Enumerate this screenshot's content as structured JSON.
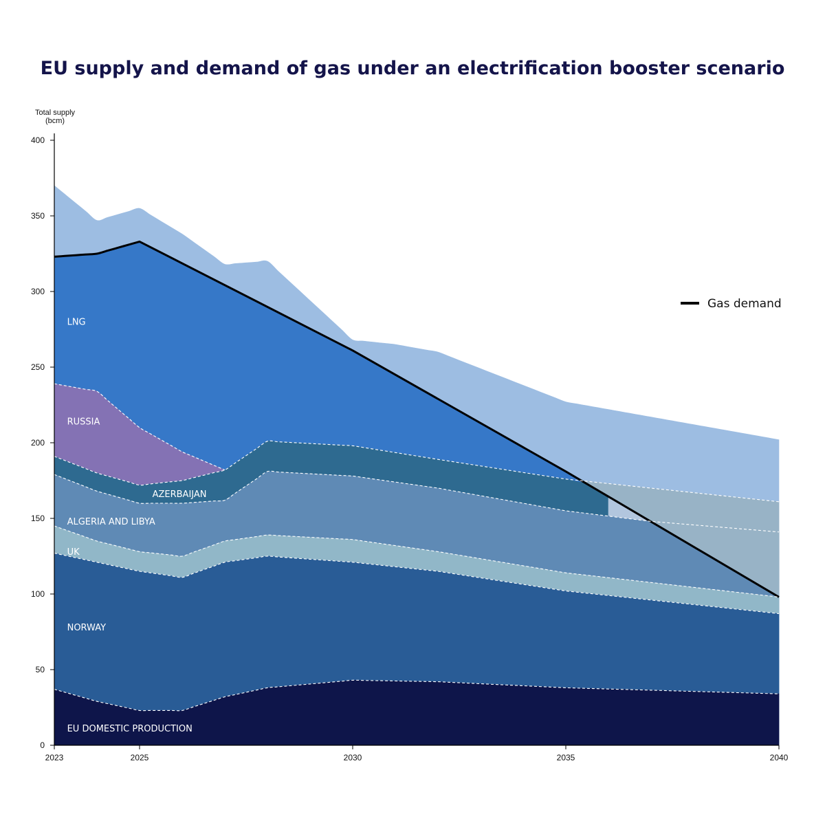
{
  "chart_data": {
    "type": "area",
    "title": "EU supply and demand of gas under an electrification booster scenario",
    "ylabel_lines": [
      "Total supply",
      "(bcm)"
    ],
    "xlabel": "",
    "xlim": [
      2023,
      2040
    ],
    "ylim": [
      0,
      400
    ],
    "x_ticks": [
      2023,
      2025,
      2030,
      2035,
      2040
    ],
    "y_ticks": [
      0,
      50,
      100,
      150,
      200,
      250,
      300,
      350,
      400
    ],
    "grid": false,
    "colors": {
      "eu_domestic": "#0e154a",
      "norway": "#295c96",
      "uk": "#91b7c8",
      "algeria_libya": "#5f8ab5",
      "azerbaijan": "#2e6a90",
      "russia": "#8472b4",
      "lng": "#3678c8",
      "surplus": "#9dbde2",
      "uncovered_demand": "#b2c6de",
      "demand_line": "#000000"
    },
    "boundaries": {
      "eu_domestic_top": [
        [
          2023,
          37
        ],
        [
          2024,
          29
        ],
        [
          2025,
          23
        ],
        [
          2026,
          23
        ],
        [
          2027,
          32
        ],
        [
          2028,
          38
        ],
        [
          2030,
          43
        ],
        [
          2032,
          42
        ],
        [
          2035,
          38
        ],
        [
          2040,
          34
        ]
      ],
      "norway_top": [
        [
          2023,
          127
        ],
        [
          2024,
          121
        ],
        [
          2025,
          115
        ],
        [
          2026,
          111
        ],
        [
          2027,
          121
        ],
        [
          2028,
          125
        ],
        [
          2030,
          121
        ],
        [
          2032,
          115
        ],
        [
          2035,
          102
        ],
        [
          2040,
          87
        ]
      ],
      "uk_top": [
        [
          2023,
          145
        ],
        [
          2024,
          135
        ],
        [
          2025,
          128
        ],
        [
          2026,
          125
        ],
        [
          2027,
          135
        ],
        [
          2028,
          139
        ],
        [
          2030,
          136
        ],
        [
          2032,
          128
        ],
        [
          2035,
          114
        ],
        [
          2040,
          98
        ]
      ],
      "algeria_libya_top": [
        [
          2023,
          179
        ],
        [
          2024,
          168
        ],
        [
          2025,
          160
        ],
        [
          2026,
          160
        ],
        [
          2027,
          162
        ],
        [
          2028,
          181
        ],
        [
          2030,
          178
        ],
        [
          2032,
          170
        ],
        [
          2035,
          155
        ],
        [
          2037,
          148
        ],
        [
          2040,
          141
        ]
      ],
      "azerbaijan_top": [
        [
          2023,
          191
        ],
        [
          2024,
          180
        ],
        [
          2025,
          172
        ],
        [
          2026,
          175
        ],
        [
          2027,
          182
        ],
        [
          2028,
          201
        ],
        [
          2030,
          198
        ],
        [
          2032,
          189
        ],
        [
          2035,
          176
        ],
        [
          2040,
          161
        ]
      ],
      "russia_top": [
        [
          2023,
          239
        ],
        [
          2024,
          234
        ],
        [
          2025,
          210
        ],
        [
          2026,
          194
        ],
        [
          2027,
          182
        ]
      ],
      "total_supply": [
        [
          2023,
          370
        ],
        [
          2024,
          347
        ],
        [
          2025,
          355
        ],
        [
          2026,
          338
        ],
        [
          2027,
          318
        ],
        [
          2028,
          320
        ],
        [
          2030,
          268
        ],
        [
          2031,
          265
        ],
        [
          2032,
          260
        ],
        [
          2035,
          227
        ],
        [
          2037,
          217
        ],
        [
          2040,
          202
        ]
      ],
      "gas_demand": [
        [
          2023,
          323
        ],
        [
          2024,
          325
        ],
        [
          2025,
          333
        ],
        [
          2030,
          261
        ],
        [
          2035,
          181
        ],
        [
          2040,
          98
        ]
      ]
    },
    "area_labels": [
      {
        "text": "LNG",
        "x": 2023.3,
        "y": 278
      },
      {
        "text": "RUSSIA",
        "x": 2023.3,
        "y": 212
      },
      {
        "text": "AZERBAIJAN",
        "x": 2025.3,
        "y": 164
      },
      {
        "text": "ALGERIA AND LIBYA",
        "x": 2023.3,
        "y": 146
      },
      {
        "text": "UK",
        "x": 2023.3,
        "y": 126
      },
      {
        "text": "NORWAY",
        "x": 2023.3,
        "y": 76
      },
      {
        "text": "EU DOMESTIC PRODUCTION",
        "x": 2023.3,
        "y": 9
      }
    ],
    "legend": {
      "label": "Gas demand",
      "position": "right"
    }
  }
}
